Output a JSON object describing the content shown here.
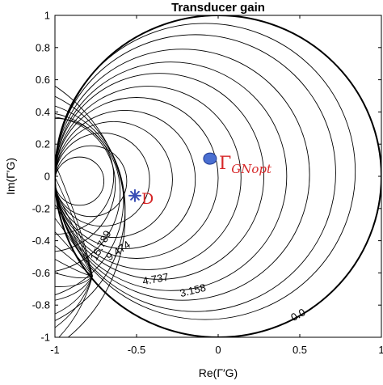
{
  "chart_data": {
    "type": "contour",
    "title": "Transducer gain",
    "xlabel": "Re(Γ′G)",
    "ylabel": "Im(Γ′G)",
    "xlim": [
      -1,
      1
    ],
    "ylim": [
      -1,
      1
    ],
    "xticks": [
      "-1",
      "-0.5",
      "0",
      "0.5",
      "1"
    ],
    "yticks": [
      "1",
      "0.8",
      "0.6",
      "0.4",
      "0.2",
      "0",
      "-0.2",
      "-0.4",
      "-0.6",
      "-0.8",
      "-1"
    ],
    "xtick_values": [
      -1,
      -0.5,
      0,
      0.5,
      1
    ],
    "ytick_values": [
      1,
      0.8,
      0.6,
      0.4,
      0.2,
      0,
      -0.2,
      -0.4,
      -0.6,
      -0.8,
      -1
    ],
    "contour_labels": [
      {
        "text": "0.0",
        "x": 0.5,
        "y": -0.88
      },
      {
        "text": "3.158",
        "x": -0.15,
        "y": -0.73
      },
      {
        "text": "4.737",
        "x": -0.38,
        "y": -0.66
      },
      {
        "text": "9.474",
        "x": -0.6,
        "y": -0.48
      },
      {
        "text": "15.789",
        "x": -0.7,
        "y": -0.44
      }
    ],
    "pivot_point": {
      "x": -0.77,
      "y": -0.62
    },
    "boundary_circle": {
      "center": [
        0,
        0
      ],
      "radius": 1
    },
    "contour_circles": [
      {
        "center": [
          -0.08,
          0.03
        ],
        "radius": 0.92
      },
      {
        "center": [
          -0.14,
          0.02
        ],
        "radius": 0.86
      },
      {
        "center": [
          -0.22,
          0.01
        ],
        "radius": 0.78
      },
      {
        "center": [
          -0.29,
          0.0
        ],
        "radius": 0.71
      },
      {
        "center": [
          -0.36,
          0.0
        ],
        "radius": 0.64
      },
      {
        "center": [
          -0.43,
          -0.01
        ],
        "radius": 0.57
      },
      {
        "center": [
          -0.5,
          -0.01
        ],
        "radius": 0.5
      },
      {
        "center": [
          -0.57,
          -0.02
        ],
        "radius": 0.43
      },
      {
        "center": [
          -0.64,
          -0.02
        ],
        "radius": 0.36
      },
      {
        "center": [
          -0.71,
          -0.02
        ],
        "radius": 0.29
      },
      {
        "center": [
          -0.78,
          -0.03
        ],
        "radius": 0.22
      },
      {
        "center": [
          -0.85,
          -0.03
        ],
        "radius": 0.15
      }
    ],
    "left_circles": [
      {
        "center": [
          -1.0,
          0.0
        ],
        "radius": 0.36
      },
      {
        "center": [
          -1.05,
          -0.05
        ],
        "radius": 0.42
      },
      {
        "center": [
          -1.1,
          -0.1
        ],
        "radius": 0.5
      },
      {
        "center": [
          -1.2,
          -0.15
        ],
        "radius": 0.62
      },
      {
        "center": [
          -1.35,
          -0.2
        ],
        "radius": 0.78
      },
      {
        "center": [
          -1.55,
          -0.25
        ],
        "radius": 0.98
      }
    ],
    "markers": [
      {
        "label": "ΓGNopt",
        "x": -0.05,
        "y": 0.11,
        "shape": "filled-circle",
        "color": "#4a6fd1"
      },
      {
        "label": "D",
        "x": -0.51,
        "y": -0.12,
        "shape": "asterisk",
        "color": "#3b4fb5"
      }
    ],
    "annotations": {
      "gamma_main": "Γ",
      "gamma_sub": "GNopt",
      "d_label": "D"
    },
    "colors": {
      "contour": "#000000",
      "boundary": "#000000",
      "marker_fill": "#4a6fd1",
      "marker_edge": "#1f3a93",
      "annotation": "#d62728"
    }
  }
}
